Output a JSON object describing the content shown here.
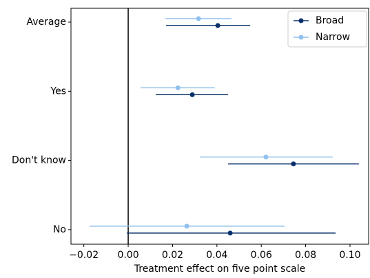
{
  "chart_data": {
    "type": "errorbar",
    "orientation": "horizontal",
    "xlabel": "Treatment effect on five point scale",
    "categories": [
      "Average",
      "Yes",
      "Don't know",
      "No"
    ],
    "series": [
      {
        "name": "Broad",
        "color": "#08306b",
        "values": [
          0.0404,
          0.0289,
          0.0745,
          0.046
        ],
        "lower": [
          0.0171,
          0.0124,
          0.045,
          -0.0006
        ],
        "upper": [
          0.055,
          0.045,
          0.104,
          0.0935
        ]
      },
      {
        "name": "Narrow",
        "color": "#92c0ee",
        "values": [
          0.0317,
          0.0224,
          0.0621,
          0.0264
        ],
        "lower": [
          0.0168,
          0.0056,
          0.0323,
          -0.0174
        ],
        "upper": [
          0.0466,
          0.039,
          0.0922,
          0.0705
        ]
      }
    ],
    "xlim": [
      -0.0258,
      0.1084
    ],
    "xticks": [
      {
        "value": -0.02,
        "label": "−0.02"
      },
      {
        "value": 0,
        "label": "0.00"
      },
      {
        "value": 0.02,
        "label": "0.02"
      },
      {
        "value": 0.04,
        "label": "0.04"
      },
      {
        "value": 0.06,
        "label": "0.06"
      },
      {
        "value": 0.08,
        "label": "0.08"
      },
      {
        "value": 0.1,
        "label": "0.10"
      }
    ],
    "reference_line": 0,
    "legend": "upper right"
  }
}
